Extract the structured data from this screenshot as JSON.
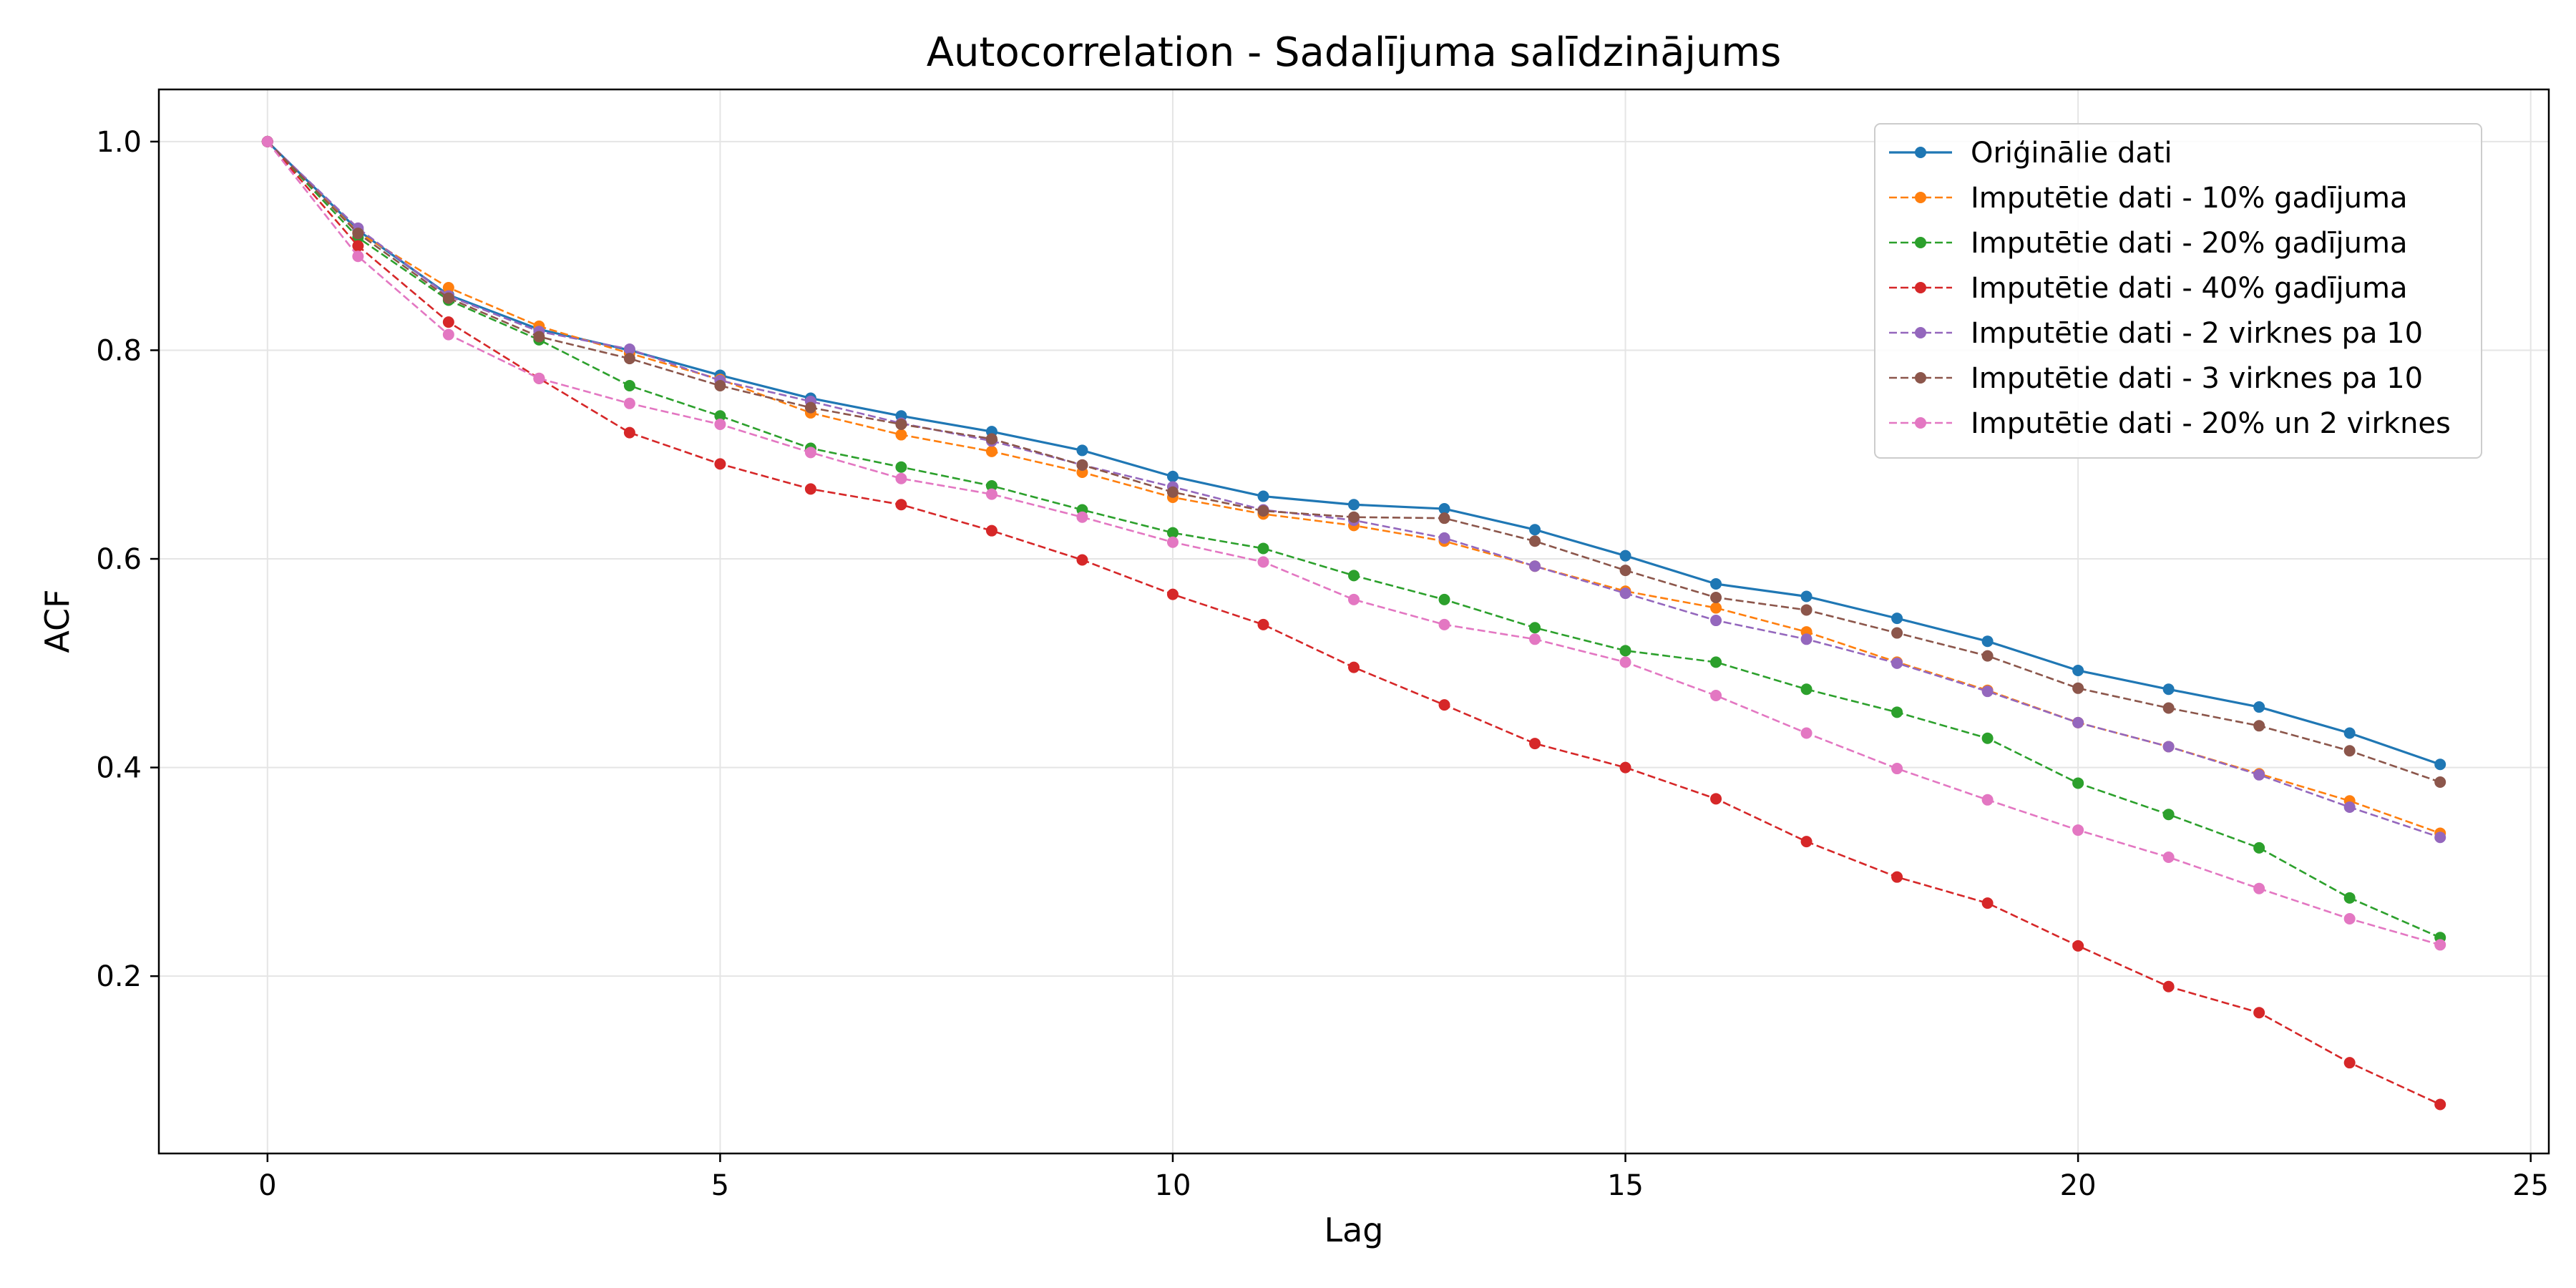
{
  "chart_data": {
    "type": "line",
    "title": "Autocorrelation - Sadalījuma salīdzinājums",
    "xlabel": "Lag",
    "ylabel": "ACF",
    "xlim": [
      -1.2,
      25.2
    ],
    "ylim": [
      0.03,
      1.05
    ],
    "xticks": [
      "0",
      "5",
      "10",
      "15",
      "20",
      "25"
    ],
    "xtick_values": [
      0,
      5,
      10,
      15,
      20,
      25
    ],
    "yticks": [
      "0.2",
      "0.4",
      "0.6",
      "0.8",
      "1.0"
    ],
    "ytick_values": [
      0.2,
      0.4,
      0.6,
      0.8,
      1.0
    ],
    "grid": true,
    "legend_position": "top-right",
    "x": [
      0,
      1,
      2,
      3,
      4,
      5,
      6,
      7,
      8,
      9,
      10,
      11,
      12,
      13,
      14,
      15,
      16,
      17,
      18,
      19,
      20,
      21,
      22,
      23,
      24
    ],
    "series": [
      {
        "name": "Oriģinālie dati",
        "color": "#1f77b4",
        "dashed": false,
        "values": [
          1.0,
          0.915,
          0.853,
          0.82,
          0.8,
          0.776,
          0.754,
          0.737,
          0.722,
          0.704,
          0.679,
          0.66,
          0.652,
          0.648,
          0.628,
          0.603,
          0.576,
          0.564,
          0.543,
          0.521,
          0.493,
          0.475,
          0.458,
          0.433,
          0.403
        ]
      },
      {
        "name": "Imputētie dati - 10% gadījuma",
        "color": "#ff7f0e",
        "dashed": true,
        "values": [
          1.0,
          0.913,
          0.86,
          0.823,
          0.797,
          0.772,
          0.74,
          0.719,
          0.703,
          0.683,
          0.659,
          0.643,
          0.632,
          0.617,
          0.593,
          0.569,
          0.553,
          0.53,
          0.501,
          0.474,
          0.443,
          0.42,
          0.394,
          0.368,
          0.337
        ]
      },
      {
        "name": "Imputētie dati - 20% gadījuma",
        "color": "#2ca02c",
        "dashed": true,
        "values": [
          1.0,
          0.908,
          0.848,
          0.81,
          0.766,
          0.737,
          0.706,
          0.688,
          0.67,
          0.647,
          0.625,
          0.61,
          0.584,
          0.561,
          0.534,
          0.512,
          0.501,
          0.475,
          0.453,
          0.428,
          0.385,
          0.355,
          0.323,
          0.275,
          0.237
        ]
      },
      {
        "name": "Imputētie dati - 40% gadījuma",
        "color": "#d62728",
        "dashed": true,
        "values": [
          1.0,
          0.9,
          0.827,
          0.773,
          0.721,
          0.691,
          0.667,
          0.652,
          0.627,
          0.599,
          0.566,
          0.537,
          0.496,
          0.46,
          0.423,
          0.4,
          0.37,
          0.329,
          0.295,
          0.27,
          0.229,
          0.19,
          0.165,
          0.117,
          0.077
        ]
      },
      {
        "name": "Imputētie dati - 2 virknes pa 10",
        "color": "#9467bd",
        "dashed": true,
        "values": [
          1.0,
          0.917,
          0.852,
          0.818,
          0.801,
          0.771,
          0.751,
          0.73,
          0.713,
          0.69,
          0.669,
          0.647,
          0.637,
          0.62,
          0.593,
          0.567,
          0.541,
          0.523,
          0.5,
          0.473,
          0.443,
          0.42,
          0.393,
          0.362,
          0.333
        ]
      },
      {
        "name": "Imputētie dati - 3 virknes pa 10",
        "color": "#8c564b",
        "dashed": true,
        "values": [
          1.0,
          0.912,
          0.85,
          0.813,
          0.792,
          0.766,
          0.745,
          0.729,
          0.715,
          0.69,
          0.664,
          0.646,
          0.64,
          0.639,
          0.617,
          0.589,
          0.563,
          0.551,
          0.529,
          0.507,
          0.476,
          0.457,
          0.44,
          0.416,
          0.386
        ]
      },
      {
        "name": "Imputētie dati - 20% un 2 virknes",
        "color": "#e377c2",
        "dashed": true,
        "values": [
          1.0,
          0.89,
          0.815,
          0.773,
          0.749,
          0.729,
          0.702,
          0.677,
          0.662,
          0.64,
          0.616,
          0.597,
          0.561,
          0.537,
          0.523,
          0.501,
          0.469,
          0.433,
          0.399,
          0.369,
          0.34,
          0.314,
          0.284,
          0.255,
          0.23
        ]
      }
    ]
  }
}
